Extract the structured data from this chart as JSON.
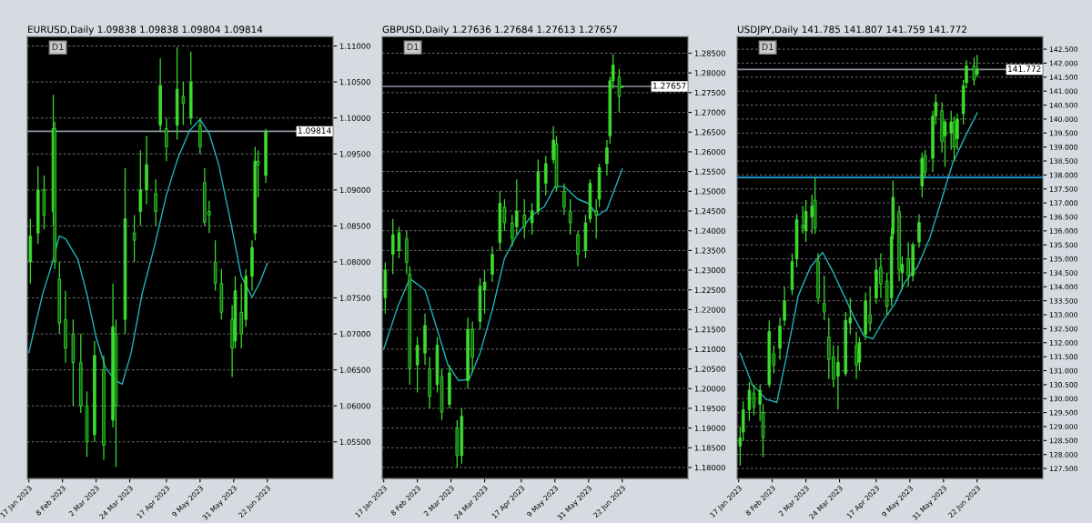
{
  "chart_data": [
    {
      "type": "candlestick",
      "title": "EURUSD,Daily 1.09838 1.09838 1.09804 1.09814",
      "annotations": [
        "D1"
      ],
      "grid": "y",
      "xlim": [
        "2023-01-16",
        "2023-08-04"
      ],
      "xticks": [
        {
          "value": "2023-01-17",
          "label": "17 Jan 2023"
        },
        {
          "value": "2023-02-08",
          "label": "8 Feb 2023"
        },
        {
          "value": "2023-03-02",
          "label": "2 Mar 2023"
        },
        {
          "value": "2023-03-24",
          "label": "24 Mar 2023"
        },
        {
          "value": "2023-04-17",
          "label": "17 Apr 2023"
        },
        {
          "value": "2023-05-09",
          "label": "9 May 2023"
        },
        {
          "value": "2023-05-31",
          "label": "31 May 2023"
        },
        {
          "value": "2023-06-22",
          "label": "22 Jun 2023"
        }
      ],
      "ylim": [
        1.0499,
        1.1113
      ],
      "yticks": [
        {
          "value": 1.055,
          "label": "1.05500"
        },
        {
          "value": 1.06,
          "label": "1.06000"
        },
        {
          "value": 1.065,
          "label": "1.06500"
        },
        {
          "value": 1.07,
          "label": "1.07000"
        },
        {
          "value": 1.075,
          "label": "1.07500"
        },
        {
          "value": 1.08,
          "label": "1.08000"
        },
        {
          "value": 1.085,
          "label": "1.08500"
        },
        {
          "value": 1.09,
          "label": "1.09000"
        },
        {
          "value": 1.095,
          "label": "1.09500"
        },
        {
          "value": 1.1,
          "label": "1.10000"
        },
        {
          "value": 1.105,
          "label": "1.10500"
        },
        {
          "value": 1.11,
          "label": "1.11000"
        }
      ],
      "ref_lines": [
        {
          "axis": "y",
          "value": 1.09814,
          "label": "1.09814",
          "color": "#8a95a0"
        }
      ],
      "series": [
        {
          "type": "candlestick",
          "color": "#3ddc2f",
          "x": [
            "2023-01-18",
            "2023-01-23",
            "2023-01-27",
            "2023-02-02",
            "2023-02-03",
            "2023-02-06",
            "2023-02-10",
            "2023-02-15",
            "2023-02-20",
            "2023-02-24",
            "2023-03-01",
            "2023-03-07",
            "2023-03-13",
            "2023-03-15",
            "2023-03-21",
            "2023-03-27",
            "2023-03-31",
            "2023-04-04",
            "2023-04-10",
            "2023-04-13",
            "2023-04-17",
            "2023-04-24",
            "2023-04-28",
            "2023-05-03",
            "2023-05-09",
            "2023-05-12",
            "2023-05-15",
            "2023-05-19",
            "2023-05-23",
            "2023-05-30",
            "2023-06-01",
            "2023-06-05",
            "2023-06-08",
            "2023-06-12",
            "2023-06-14",
            "2023-06-16",
            "2023-06-21"
          ],
          "ohlc": [
            [
              1.08,
              1.086,
              1.077,
              1.0836
            ],
            [
              1.084,
              1.0933,
              1.0825,
              1.09
            ],
            [
              1.09,
              1.092,
              1.0845,
              1.0865
            ],
            [
              1.087,
              1.1032,
              1.085,
              1.0985
            ],
            [
              1.0985,
              1.0995,
              1.079,
              1.08
            ],
            [
              1.0776,
              1.08,
              1.07,
              1.0715
            ],
            [
              1.072,
              1.076,
              1.066,
              1.068
            ],
            [
              1.07,
              1.072,
              1.06,
              1.066
            ],
            [
              1.066,
              1.07,
              1.059,
              1.06
            ],
            [
              1.06,
              1.062,
              1.0529,
              1.055
            ],
            [
              1.056,
              1.069,
              1.055,
              1.067
            ],
            [
              1.065,
              1.067,
              1.0525,
              1.0545
            ],
            [
              1.058,
              1.077,
              1.057,
              1.071
            ],
            [
              1.07,
              1.072,
              1.0515,
              1.06
            ],
            [
              1.072,
              1.093,
              1.07,
              1.086
            ],
            [
              1.084,
              1.0865,
              1.08,
              1.083
            ],
            [
              1.087,
              1.0955,
              1.085,
              1.09
            ],
            [
              1.09,
              1.0975,
              1.088,
              1.0935
            ],
            [
              1.0895,
              1.0915,
              1.085,
              1.087
            ],
            [
              1.099,
              1.1083,
              1.098,
              1.1045
            ],
            [
              1.0985,
              1.1,
              1.094,
              1.096
            ],
            [
              1.099,
              1.1098,
              1.097,
              1.104
            ],
            [
              1.103,
              1.105,
              1.099,
              1.102
            ],
            [
              1.1,
              1.1092,
              1.099,
              1.105
            ],
            [
              1.099,
              1.1,
              1.095,
              1.096
            ],
            [
              1.091,
              1.093,
              1.085,
              1.0855
            ],
            [
              1.087,
              1.0885,
              1.084,
              1.0865
            ],
            [
              1.08,
              1.083,
              1.076,
              1.077
            ],
            [
              1.077,
              1.079,
              1.072,
              1.073
            ],
            [
              1.072,
              1.074,
              1.064,
              1.068
            ],
            [
              1.069,
              1.078,
              1.068,
              1.076
            ],
            [
              1.073,
              1.077,
              1.068,
              1.07
            ],
            [
              1.072,
              1.079,
              1.071,
              1.078
            ],
            [
              1.078,
              1.083,
              1.076,
              1.082
            ],
            [
              1.084,
              1.096,
              1.083,
              1.094
            ],
            [
              1.094,
              1.0955,
              1.089,
              1.0935
            ],
            [
              1.092,
              1.0985,
              1.091,
              1.0981
            ]
          ]
        },
        {
          "type": "line",
          "color": "#20b2b8",
          "x": [
            "2023-01-17",
            "2023-01-26",
            "2023-02-01",
            "2023-02-06",
            "2023-02-10",
            "2023-02-18",
            "2023-02-24",
            "2023-03-02",
            "2023-03-08",
            "2023-03-14",
            "2023-03-19",
            "2023-03-25",
            "2023-04-01",
            "2023-04-09",
            "2023-04-17",
            "2023-04-24",
            "2023-05-02",
            "2023-05-09",
            "2023-05-15",
            "2023-05-21",
            "2023-05-29",
            "2023-06-05",
            "2023-06-12",
            "2023-06-17",
            "2023-06-22"
          ],
          "values": [
            1.0674,
            1.0755,
            1.0796,
            1.0836,
            1.0832,
            1.0804,
            1.0755,
            1.0695,
            1.0654,
            1.0636,
            1.063,
            1.0674,
            1.0755,
            1.082,
            1.0893,
            1.0941,
            1.0982,
            1.0998,
            1.0978,
            1.0937,
            1.0856,
            1.078,
            1.0751,
            1.0771,
            1.0798
          ]
        }
      ]
    },
    {
      "type": "candlestick",
      "title": "GBPUSD,Daily 1.27636 1.27684 1.27613 1.27657",
      "annotations": [
        "D1"
      ],
      "grid": "y",
      "xlim": [
        "2023-01-16",
        "2023-08-04"
      ],
      "xticks": [
        {
          "value": "2023-01-17",
          "label": "17 Jan 2023"
        },
        {
          "value": "2023-02-08",
          "label": "8 Feb 2023"
        },
        {
          "value": "2023-03-02",
          "label": "2 Mar 2023"
        },
        {
          "value": "2023-03-24",
          "label": "24 Mar 2023"
        },
        {
          "value": "2023-04-17",
          "label": "17 Apr 2023"
        },
        {
          "value": "2023-05-09",
          "label": "9 May 2023"
        },
        {
          "value": "2023-05-31",
          "label": "31 May 2023"
        },
        {
          "value": "2023-06-22",
          "label": "22 Jun 2023"
        }
      ],
      "ylim": [
        1.1772,
        1.2892
      ],
      "yticks": [
        {
          "value": 1.18,
          "label": "1.18000"
        },
        {
          "value": 1.185,
          "label": "1.18500"
        },
        {
          "value": 1.19,
          "label": "1.19000"
        },
        {
          "value": 1.195,
          "label": "1.19500"
        },
        {
          "value": 1.2,
          "label": "1.20000"
        },
        {
          "value": 1.205,
          "label": "1.20500"
        },
        {
          "value": 1.21,
          "label": "1.21000"
        },
        {
          "value": 1.215,
          "label": "1.21500"
        },
        {
          "value": 1.22,
          "label": "1.22000"
        },
        {
          "value": 1.225,
          "label": "1.22500"
        },
        {
          "value": 1.23,
          "label": "1.23000"
        },
        {
          "value": 1.235,
          "label": "1.23500"
        },
        {
          "value": 1.24,
          "label": "1.24000"
        },
        {
          "value": 1.245,
          "label": "1.24500"
        },
        {
          "value": 1.25,
          "label": "1.25000"
        },
        {
          "value": 1.255,
          "label": "1.25500"
        },
        {
          "value": 1.26,
          "label": "1.26000"
        },
        {
          "value": 1.265,
          "label": "1.26500"
        },
        {
          "value": 1.27,
          "label": "1.27000"
        },
        {
          "value": 1.275,
          "label": "1.27500"
        },
        {
          "value": 1.28,
          "label": "1.28000"
        },
        {
          "value": 1.285,
          "label": "1.28500"
        }
      ],
      "ref_lines": [
        {
          "axis": "y",
          "value": 1.27657,
          "label": "1.27657",
          "color": "#8a95a0"
        }
      ],
      "series": [
        {
          "type": "candlestick",
          "color": "#3ddc2f",
          "x": [
            "2023-01-18",
            "2023-01-23",
            "2023-01-27",
            "2023-02-01",
            "2023-02-03",
            "2023-02-08",
            "2023-02-13",
            "2023-02-16",
            "2023-02-21",
            "2023-02-24",
            "2023-03-01",
            "2023-03-06",
            "2023-03-09",
            "2023-03-13",
            "2023-03-16",
            "2023-03-21",
            "2023-03-24",
            "2023-03-29",
            "2023-04-03",
            "2023-04-06",
            "2023-04-11",
            "2023-04-14",
            "2023-04-19",
            "2023-04-24",
            "2023-04-28",
            "2023-05-03",
            "2023-05-08",
            "2023-05-10",
            "2023-05-15",
            "2023-05-19",
            "2023-05-24",
            "2023-05-29",
            "2023-06-01",
            "2023-06-05",
            "2023-06-07",
            "2023-06-12",
            "2023-06-14",
            "2023-06-16",
            "2023-06-20",
            "2023-06-22"
          ],
          "ohlc": [
            [
              1.223,
              1.232,
              1.219,
              1.23
            ],
            [
              1.234,
              1.243,
              1.229,
              1.239
            ],
            [
              1.235,
              1.241,
              1.233,
              1.2395
            ],
            [
              1.238,
              1.24,
              1.229,
              1.232
            ],
            [
              1.229,
              1.231,
              1.201,
              1.205
            ],
            [
              1.206,
              1.213,
              1.199,
              1.211
            ],
            [
              1.209,
              1.219,
              1.206,
              1.216
            ],
            [
              1.205,
              1.208,
              1.195,
              1.198
            ],
            [
              1.201,
              1.213,
              1.199,
              1.211
            ],
            [
              1.203,
              1.205,
              1.192,
              1.194
            ],
            [
              1.196,
              1.206,
              1.195,
              1.204
            ],
            [
              1.19,
              1.192,
              1.18,
              1.183
            ],
            [
              1.183,
              1.195,
              1.181,
              1.193
            ],
            [
              1.202,
              1.218,
              1.2,
              1.215
            ],
            [
              1.215,
              1.217,
              1.204,
              1.208
            ],
            [
              1.217,
              1.228,
              1.215,
              1.226
            ],
            [
              1.225,
              1.23,
              1.219,
              1.227
            ],
            [
              1.229,
              1.236,
              1.227,
              1.234
            ],
            [
              1.237,
              1.25,
              1.235,
              1.247
            ],
            [
              1.246,
              1.248,
              1.24,
              1.242
            ],
            [
              1.242,
              1.244,
              1.236,
              1.238
            ],
            [
              1.241,
              1.253,
              1.239,
              1.245
            ],
            [
              1.244,
              1.248,
              1.238,
              1.241
            ],
            [
              1.242,
              1.247,
              1.239,
              1.245
            ],
            [
              1.245,
              1.258,
              1.244,
              1.255
            ],
            [
              1.252,
              1.259,
              1.249,
              1.257
            ],
            [
              1.258,
              1.2665,
              1.257,
              1.263
            ],
            [
              1.262,
              1.264,
              1.25,
              1.251
            ],
            [
              1.25,
              1.252,
              1.244,
              1.246
            ],
            [
              1.245,
              1.248,
              1.239,
              1.242
            ],
            [
              1.239,
              1.24,
              1.231,
              1.234
            ],
            [
              1.235,
              1.244,
              1.233,
              1.242
            ],
            [
              1.243,
              1.253,
              1.242,
              1.252
            ],
            [
              1.245,
              1.248,
              1.238,
              1.244
            ],
            [
              1.248,
              1.257,
              1.246,
              1.256
            ],
            [
              1.257,
              1.263,
              1.254,
              1.261
            ],
            [
              1.264,
              1.279,
              1.262,
              1.278
            ],
            [
              1.278,
              1.2848,
              1.276,
              1.282
            ],
            [
              1.279,
              1.281,
              1.27,
              1.274
            ],
            [
              1.2764,
              1.2768,
              1.2761,
              1.2766
            ]
          ]
        },
        {
          "type": "line",
          "color": "#20b2b8",
          "x": [
            "2023-01-17",
            "2023-01-26",
            "2023-02-03",
            "2023-02-13",
            "2023-02-20",
            "2023-02-28",
            "2023-03-07",
            "2023-03-14",
            "2023-03-21",
            "2023-03-29",
            "2023-04-06",
            "2023-04-14",
            "2023-04-24",
            "2023-05-02",
            "2023-05-09",
            "2023-05-15",
            "2023-05-24",
            "2023-05-31",
            "2023-06-06",
            "2023-06-12",
            "2023-06-17",
            "2023-06-22"
          ],
          "values": [
            1.21,
            1.2206,
            1.2279,
            1.225,
            1.2162,
            1.206,
            1.202,
            1.2024,
            1.209,
            1.2199,
            1.233,
            1.2389,
            1.2439,
            1.2461,
            1.2512,
            1.2512,
            1.248,
            1.2469,
            1.2439,
            1.2454,
            1.2505,
            1.2556
          ]
        }
      ]
    },
    {
      "type": "candlestick",
      "title": "USDJPY,Daily 141.785 141.807 141.759 141.772",
      "annotations": [
        "D1"
      ],
      "grid": "y",
      "xlim": [
        "2023-01-16",
        "2023-08-04"
      ],
      "xticks": [
        {
          "value": "2023-01-17",
          "label": "17 Jan 2023"
        },
        {
          "value": "2023-02-08",
          "label": "8 Feb 2023"
        },
        {
          "value": "2023-03-02",
          "label": "2 Mar 2023"
        },
        {
          "value": "2023-03-24",
          "label": "24 Mar 2023"
        },
        {
          "value": "2023-04-17",
          "label": "17 Apr 2023"
        },
        {
          "value": "2023-05-09",
          "label": "9 May 2023"
        },
        {
          "value": "2023-05-31",
          "label": "31 May 2023"
        },
        {
          "value": "2023-06-22",
          "label": "22 Jun 2023"
        }
      ],
      "ylim": [
        127.14,
        142.95
      ],
      "yticks": [
        {
          "value": 127.5,
          "label": "127.500"
        },
        {
          "value": 128,
          "label": "128.000"
        },
        {
          "value": 128.5,
          "label": "128.500"
        },
        {
          "value": 129,
          "label": "129.000"
        },
        {
          "value": 129.5,
          "label": "129.500"
        },
        {
          "value": 130,
          "label": "130.000"
        },
        {
          "value": 130.5,
          "label": "130.500"
        },
        {
          "value": 131,
          "label": "131.000"
        },
        {
          "value": 131.5,
          "label": "131.500"
        },
        {
          "value": 132,
          "label": "132.000"
        },
        {
          "value": 132.5,
          "label": "132.500"
        },
        {
          "value": 133,
          "label": "133.000"
        },
        {
          "value": 133.5,
          "label": "133.500"
        },
        {
          "value": 134,
          "label": "134.000"
        },
        {
          "value": 134.5,
          "label": "134.500"
        },
        {
          "value": 135,
          "label": "135.000"
        },
        {
          "value": 135.5,
          "label": "135.500"
        },
        {
          "value": 136,
          "label": "136.000"
        },
        {
          "value": 136.5,
          "label": "136.500"
        },
        {
          "value": 137,
          "label": "137.000"
        },
        {
          "value": 137.5,
          "label": "137.500"
        },
        {
          "value": 138,
          "label": "138.000"
        },
        {
          "value": 138.5,
          "label": "138.500"
        },
        {
          "value": 139,
          "label": "139.000"
        },
        {
          "value": 139.5,
          "label": "139.500"
        },
        {
          "value": 140,
          "label": "140.000"
        },
        {
          "value": 140.5,
          "label": "140.500"
        },
        {
          "value": 141,
          "label": "141.000"
        },
        {
          "value": 141.5,
          "label": "141.500"
        },
        {
          "value": 142,
          "label": "142.000"
        },
        {
          "value": 142.5,
          "label": "142.500"
        }
      ],
      "ref_lines": [
        {
          "axis": "y",
          "value": 141.772,
          "label": "141.772",
          "color": "#8a95a0"
        },
        {
          "axis": "y",
          "value": 137.91,
          "color": "#1ea7e8"
        }
      ],
      "series": [
        {
          "type": "candlestick",
          "color": "#3ddc2f",
          "x": [
            "2023-01-18",
            "2023-01-20",
            "2023-01-24",
            "2023-01-27",
            "2023-01-31",
            "2023-02-02",
            "2023-02-06",
            "2023-02-09",
            "2023-02-13",
            "2023-02-16",
            "2023-02-21",
            "2023-02-24",
            "2023-02-28",
            "2023-03-02",
            "2023-03-06",
            "2023-03-08",
            "2023-03-10",
            "2023-03-14",
            "2023-03-17",
            "2023-03-20",
            "2023-03-23",
            "2023-03-28",
            "2023-03-31",
            "2023-04-04",
            "2023-04-06",
            "2023-04-10",
            "2023-04-13",
            "2023-04-17",
            "2023-04-20",
            "2023-04-24",
            "2023-04-27",
            "2023-04-28",
            "2023-05-02",
            "2023-05-04",
            "2023-05-08",
            "2023-05-11",
            "2023-05-15",
            "2023-05-17",
            "2023-05-19",
            "2023-05-24",
            "2023-05-26",
            "2023-05-30",
            "2023-06-01",
            "2023-06-05",
            "2023-06-07",
            "2023-06-09",
            "2023-06-13",
            "2023-06-15",
            "2023-06-20",
            "2023-06-22"
          ],
          "ohlc": [
            [
              128.3,
              129.0,
              127.6,
              128.6
            ],
            [
              128.8,
              129.9,
              128.5,
              129.6
            ],
            [
              129.6,
              130.6,
              129.2,
              130.3
            ],
            [
              130.2,
              130.5,
              129.4,
              129.7
            ],
            [
              129.8,
              130.5,
              129.2,
              130.3
            ],
            [
              129.5,
              129.8,
              127.9,
              128.6
            ],
            [
              130.5,
              132.8,
              130.4,
              132.4
            ],
            [
              131.6,
              131.9,
              130.9,
              131.2
            ],
            [
              131.8,
              132.9,
              131.4,
              132.6
            ],
            [
              132.8,
              134.0,
              132.6,
              133.5
            ],
            [
              133.9,
              135.2,
              133.7,
              134.9
            ],
            [
              135.0,
              136.6,
              134.7,
              136.4
            ],
            [
              136.2,
              136.9,
              135.9,
              136.1
            ],
            [
              136.0,
              137.1,
              135.6,
              136.7
            ],
            [
              136.5,
              137.3,
              135.9,
              136.9
            ],
            [
              137.1,
              137.9,
              135.9,
              136.1
            ],
            [
              134.9,
              135.2,
              133.4,
              133.6
            ],
            [
              133.4,
              134.4,
              132.8,
              133.1
            ],
            [
              132.2,
              132.9,
              130.7,
              131.4
            ],
            [
              131.5,
              131.9,
              130.4,
              130.7
            ],
            [
              130.8,
              131.9,
              129.6,
              131.3
            ],
            [
              130.9,
              133.1,
              130.8,
              132.8
            ],
            [
              132.7,
              133.6,
              132.3,
              132.9
            ],
            [
              131.9,
              132.4,
              130.7,
              131.2
            ],
            [
              131.3,
              132.2,
              131.0,
              132.0
            ],
            [
              132.3,
              133.8,
              132.1,
              133.5
            ],
            [
              133.0,
              134.0,
              132.4,
              132.7
            ],
            [
              133.6,
              135.0,
              133.4,
              134.6
            ],
            [
              134.7,
              135.2,
              133.6,
              134.1
            ],
            [
              134.2,
              134.5,
              133.0,
              133.3
            ],
            [
              133.6,
              136.1,
              133.3,
              135.8
            ],
            [
              135.9,
              137.8,
              135.7,
              137.2
            ],
            [
              136.7,
              136.9,
              134.2,
              134.6
            ],
            [
              134.5,
              135.1,
              133.9,
              134.8
            ],
            [
              135.0,
              135.6,
              134.0,
              134.4
            ],
            [
              134.4,
              135.6,
              134.2,
              135.5
            ],
            [
              135.6,
              136.6,
              135.4,
              136.3
            ],
            [
              137.6,
              138.8,
              137.2,
              138.6
            ],
            [
              138.7,
              138.9,
              137.9,
              138.1
            ],
            [
              138.6,
              140.3,
              138.1,
              140.1
            ],
            [
              140.1,
              140.9,
              139.8,
              140.6
            ],
            [
              140.3,
              140.6,
              138.8,
              139.2
            ],
            [
              139.4,
              140.0,
              138.3,
              139.9
            ],
            [
              139.5,
              140.3,
              138.9,
              139.9
            ],
            [
              139.9,
              140.1,
              138.5,
              139.0
            ],
            [
              139.3,
              140.2,
              138.9,
              140.0
            ],
            [
              140.2,
              141.4,
              139.8,
              141.2
            ],
            [
              141.3,
              142.1,
              141.1,
              141.9
            ],
            [
              141.9,
              142.2,
              141.2,
              141.4
            ],
            [
              141.6,
              142.3,
              141.5,
              141.772
            ]
          ]
        },
        {
          "type": "line",
          "color": "#20b2b8",
          "x": [
            "2023-01-18",
            "2023-01-26",
            "2023-01-30",
            "2023-02-04",
            "2023-02-11",
            "2023-02-17",
            "2023-02-25",
            "2023-03-05",
            "2023-03-13",
            "2023-03-19",
            "2023-03-27",
            "2023-04-03",
            "2023-04-09",
            "2023-04-15",
            "2023-04-21",
            "2023-04-29",
            "2023-05-06",
            "2023-05-14",
            "2023-05-22",
            "2023-05-29",
            "2023-06-06",
            "2023-06-14",
            "2023-06-22"
          ],
          "values": [
            131.62,
            130.49,
            130.28,
            129.97,
            129.87,
            131.42,
            133.68,
            134.71,
            135.23,
            134.61,
            133.68,
            132.86,
            132.24,
            132.14,
            132.75,
            133.37,
            134.19,
            134.71,
            135.74,
            136.98,
            138.42,
            139.35,
            140.22
          ]
        }
      ]
    }
  ]
}
